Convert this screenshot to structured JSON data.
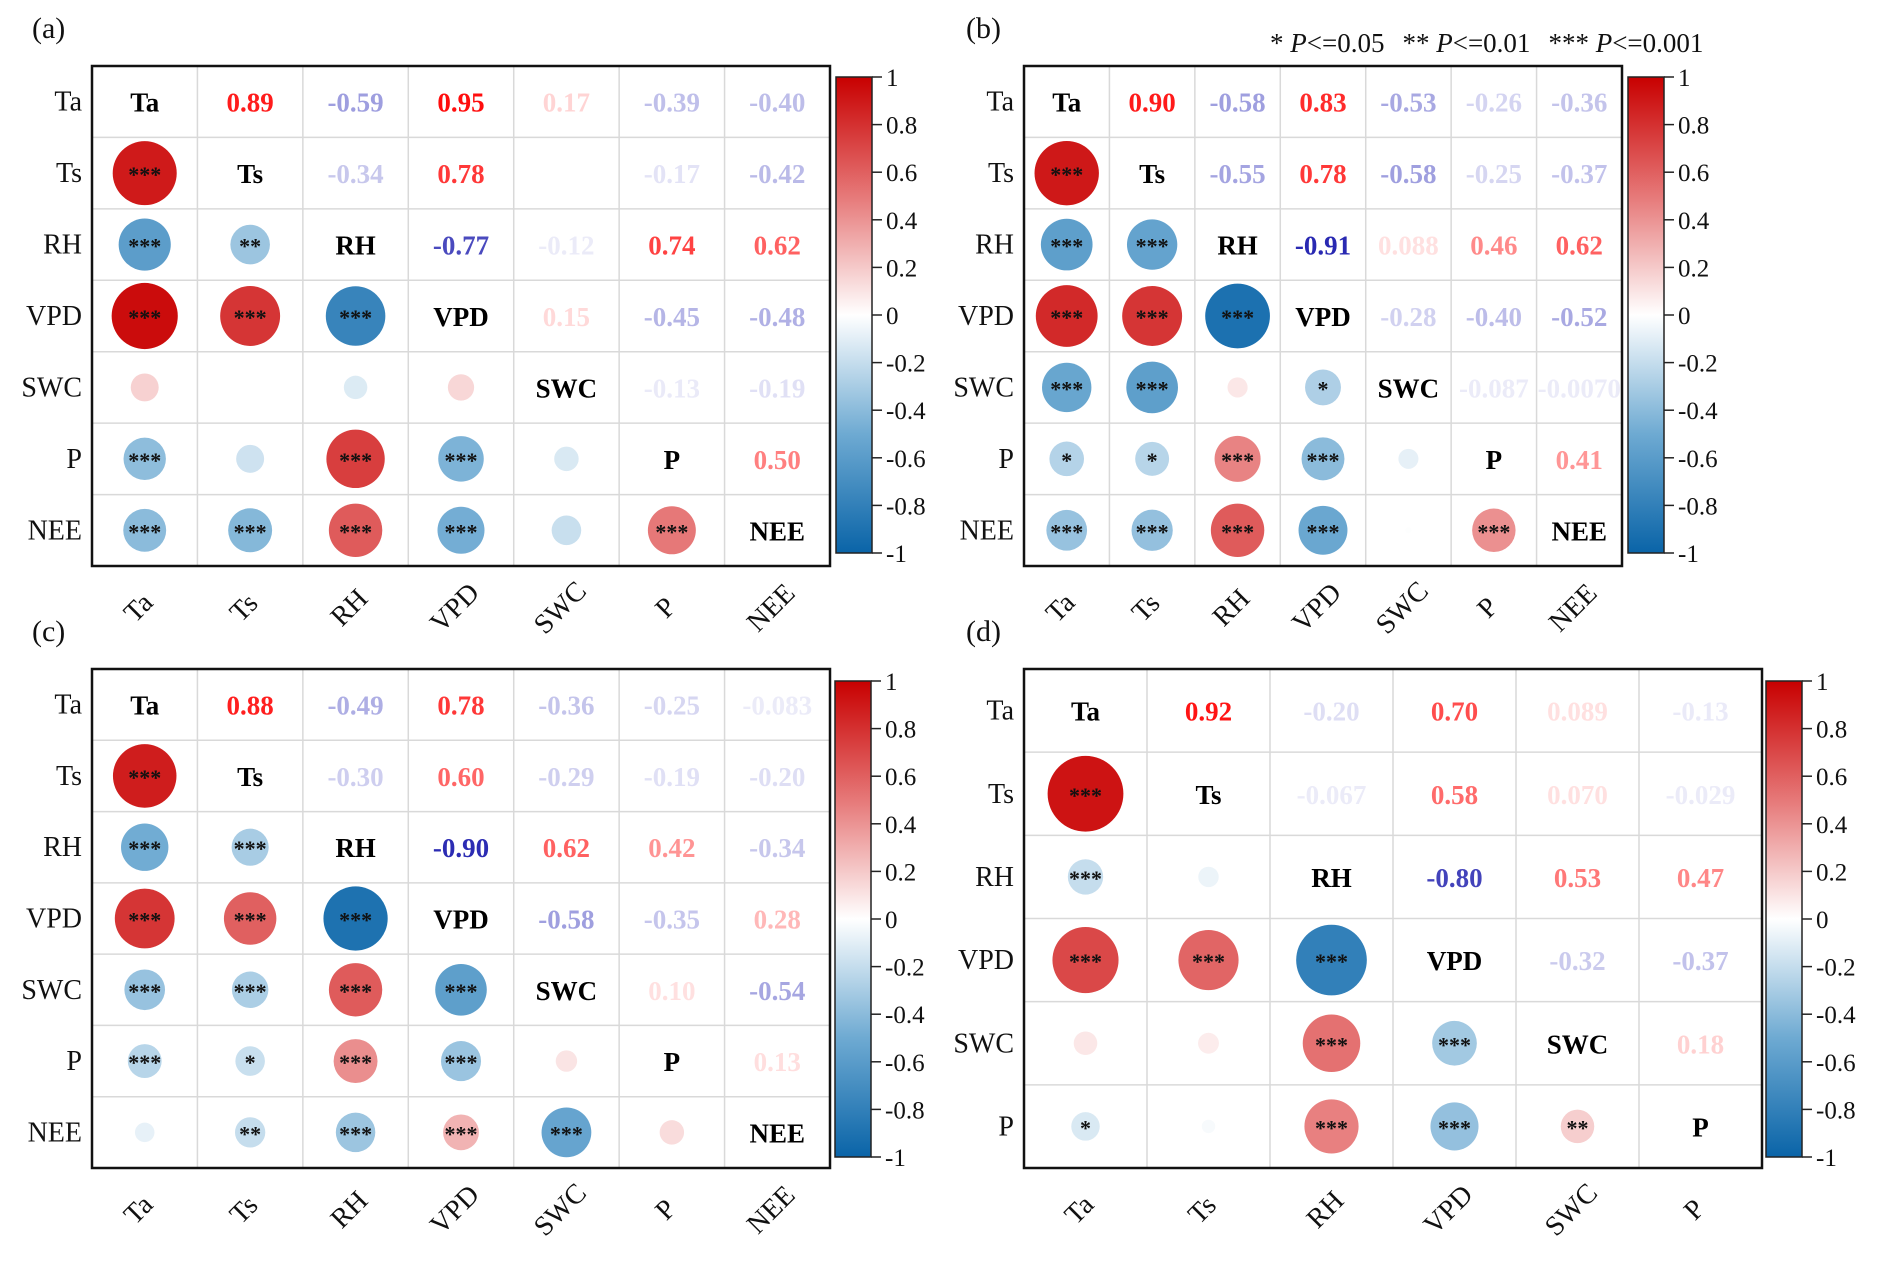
{
  "figure": {
    "significance_legend": [
      {
        "stars": "*",
        "text": "P<=0.05"
      },
      {
        "stars": "**",
        "text": "P<=0.01"
      },
      {
        "stars": "***",
        "text": "P<=0.001"
      }
    ],
    "colorbar_ticks": [
      "1",
      "0.8",
      "0.6",
      "0.4",
      "0.2",
      "0",
      "-0.2",
      "-0.4",
      "-0.6",
      "-0.8",
      "-1"
    ],
    "colors": {
      "positive": "#C80000",
      "neutral": "#FFFFFF",
      "negative": "#0A64A8",
      "pos_text": "#FF0000",
      "neg_text": "#1A1AB0",
      "grid": "#D9D9D9"
    }
  },
  "chart_data": [
    {
      "type": "heatmap",
      "title": "(a)",
      "variables": [
        "Ta",
        "Ts",
        "RH",
        "VPD",
        "SWC",
        "P",
        "NEE"
      ],
      "value_range": [
        -1,
        1
      ],
      "upper_values": [
        [
          null,
          "0.89",
          "-0.59",
          "0.95",
          "0.17",
          "-0.39",
          "-0.40"
        ],
        [
          null,
          null,
          "-0.34",
          "0.78",
          "",
          "-0.17",
          "-0.42"
        ],
        [
          null,
          null,
          null,
          "-0.77",
          "-0.12",
          "0.74",
          "0.62"
        ],
        [
          null,
          null,
          null,
          null,
          "0.15",
          "-0.45",
          "-0.48"
        ],
        [
          null,
          null,
          null,
          null,
          null,
          "-0.13",
          "-0.19"
        ],
        [
          null,
          null,
          null,
          null,
          null,
          null,
          "0.50"
        ],
        [
          null,
          null,
          null,
          null,
          null,
          null,
          null
        ]
      ],
      "significance": [
        [
          null,
          null,
          null,
          null,
          null,
          null,
          null
        ],
        [
          "***",
          null,
          null,
          null,
          null,
          null,
          null
        ],
        [
          "***",
          "**",
          null,
          null,
          null,
          null,
          null
        ],
        [
          "***",
          "***",
          "***",
          null,
          null,
          null,
          null
        ],
        [
          "",
          "",
          "",
          "",
          null,
          null,
          null
        ],
        [
          "***",
          "",
          "***",
          "***",
          "",
          null,
          null
        ],
        [
          "***",
          "***",
          "***",
          "***",
          "",
          "***",
          null
        ]
      ]
    },
    {
      "type": "heatmap",
      "title": "(b)",
      "variables": [
        "Ta",
        "Ts",
        "RH",
        "VPD",
        "SWC",
        "P",
        "NEE"
      ],
      "value_range": [
        -1,
        1
      ],
      "upper_values": [
        [
          null,
          "0.90",
          "-0.58",
          "0.83",
          "-0.53",
          "-0.26",
          "-0.36"
        ],
        [
          null,
          null,
          "-0.55",
          "0.78",
          "-0.58",
          "-0.25",
          "-0.37"
        ],
        [
          null,
          null,
          null,
          "-0.91",
          "0.088",
          "0.46",
          "0.62"
        ],
        [
          null,
          null,
          null,
          null,
          "-0.28",
          "-0.40",
          "-0.52"
        ],
        [
          null,
          null,
          null,
          null,
          null,
          "-0.087",
          "-0.0070"
        ],
        [
          null,
          null,
          null,
          null,
          null,
          null,
          "0.41"
        ],
        [
          null,
          null,
          null,
          null,
          null,
          null,
          null
        ]
      ],
      "significance": [
        [
          null,
          null,
          null,
          null,
          null,
          null,
          null
        ],
        [
          "***",
          null,
          null,
          null,
          null,
          null,
          null
        ],
        [
          "***",
          "***",
          null,
          null,
          null,
          null,
          null
        ],
        [
          "***",
          "***",
          "***",
          null,
          null,
          null,
          null
        ],
        [
          "***",
          "***",
          "",
          "*",
          null,
          null,
          null
        ],
        [
          "*",
          "*",
          "***",
          "***",
          "",
          null,
          null
        ],
        [
          "***",
          "***",
          "***",
          "***",
          "",
          "***",
          null
        ]
      ]
    },
    {
      "type": "heatmap",
      "title": "(c)",
      "variables": [
        "Ta",
        "Ts",
        "RH",
        "VPD",
        "SWC",
        "P",
        "NEE"
      ],
      "value_range": [
        -1,
        1
      ],
      "upper_values": [
        [
          null,
          "0.88",
          "-0.49",
          "0.78",
          "-0.36",
          "-0.25",
          "-0.083"
        ],
        [
          null,
          null,
          "-0.30",
          "0.60",
          "-0.29",
          "-0.19",
          "-0.20"
        ],
        [
          null,
          null,
          null,
          "-0.90",
          "0.62",
          "0.42",
          "-0.34"
        ],
        [
          null,
          null,
          null,
          null,
          "-0.58",
          "-0.35",
          "0.28"
        ],
        [
          null,
          null,
          null,
          null,
          null,
          "0.10",
          "-0.54"
        ],
        [
          null,
          null,
          null,
          null,
          null,
          null,
          "0.13"
        ],
        [
          null,
          null,
          null,
          null,
          null,
          null,
          null
        ]
      ],
      "significance": [
        [
          null,
          null,
          null,
          null,
          null,
          null,
          null
        ],
        [
          "***",
          null,
          null,
          null,
          null,
          null,
          null
        ],
        [
          "***",
          "***",
          null,
          null,
          null,
          null,
          null
        ],
        [
          "***",
          "***",
          "***",
          null,
          null,
          null,
          null
        ],
        [
          "***",
          "***",
          "***",
          "***",
          null,
          null,
          null
        ],
        [
          "***",
          "*",
          "***",
          "***",
          "",
          null,
          null
        ],
        [
          "",
          "**",
          "***",
          "***",
          "***",
          "",
          null
        ]
      ]
    },
    {
      "type": "heatmap",
      "title": "(d)",
      "variables": [
        "Ta",
        "Ts",
        "RH",
        "VPD",
        "SWC",
        "P"
      ],
      "value_range": [
        -1,
        1
      ],
      "upper_values": [
        [
          null,
          "0.92",
          "-0.20",
          "0.70",
          "0.089",
          "-0.13"
        ],
        [
          null,
          null,
          "-0.067",
          "0.58",
          "0.070",
          "-0.029"
        ],
        [
          null,
          null,
          null,
          "-0.80",
          "0.53",
          "0.47"
        ],
        [
          null,
          null,
          null,
          null,
          "-0.32",
          "-0.37"
        ],
        [
          null,
          null,
          null,
          null,
          null,
          "0.18"
        ],
        [
          null,
          null,
          null,
          null,
          null,
          null
        ]
      ],
      "significance": [
        [
          null,
          null,
          null,
          null,
          null,
          null
        ],
        [
          "***",
          null,
          null,
          null,
          null,
          null
        ],
        [
          "***",
          "",
          null,
          null,
          null,
          null
        ],
        [
          "***",
          "***",
          "***",
          null,
          null,
          null
        ],
        [
          "",
          "",
          "***",
          "***",
          null,
          null
        ],
        [
          "*",
          "",
          "***",
          "***",
          "**",
          null
        ]
      ]
    }
  ]
}
